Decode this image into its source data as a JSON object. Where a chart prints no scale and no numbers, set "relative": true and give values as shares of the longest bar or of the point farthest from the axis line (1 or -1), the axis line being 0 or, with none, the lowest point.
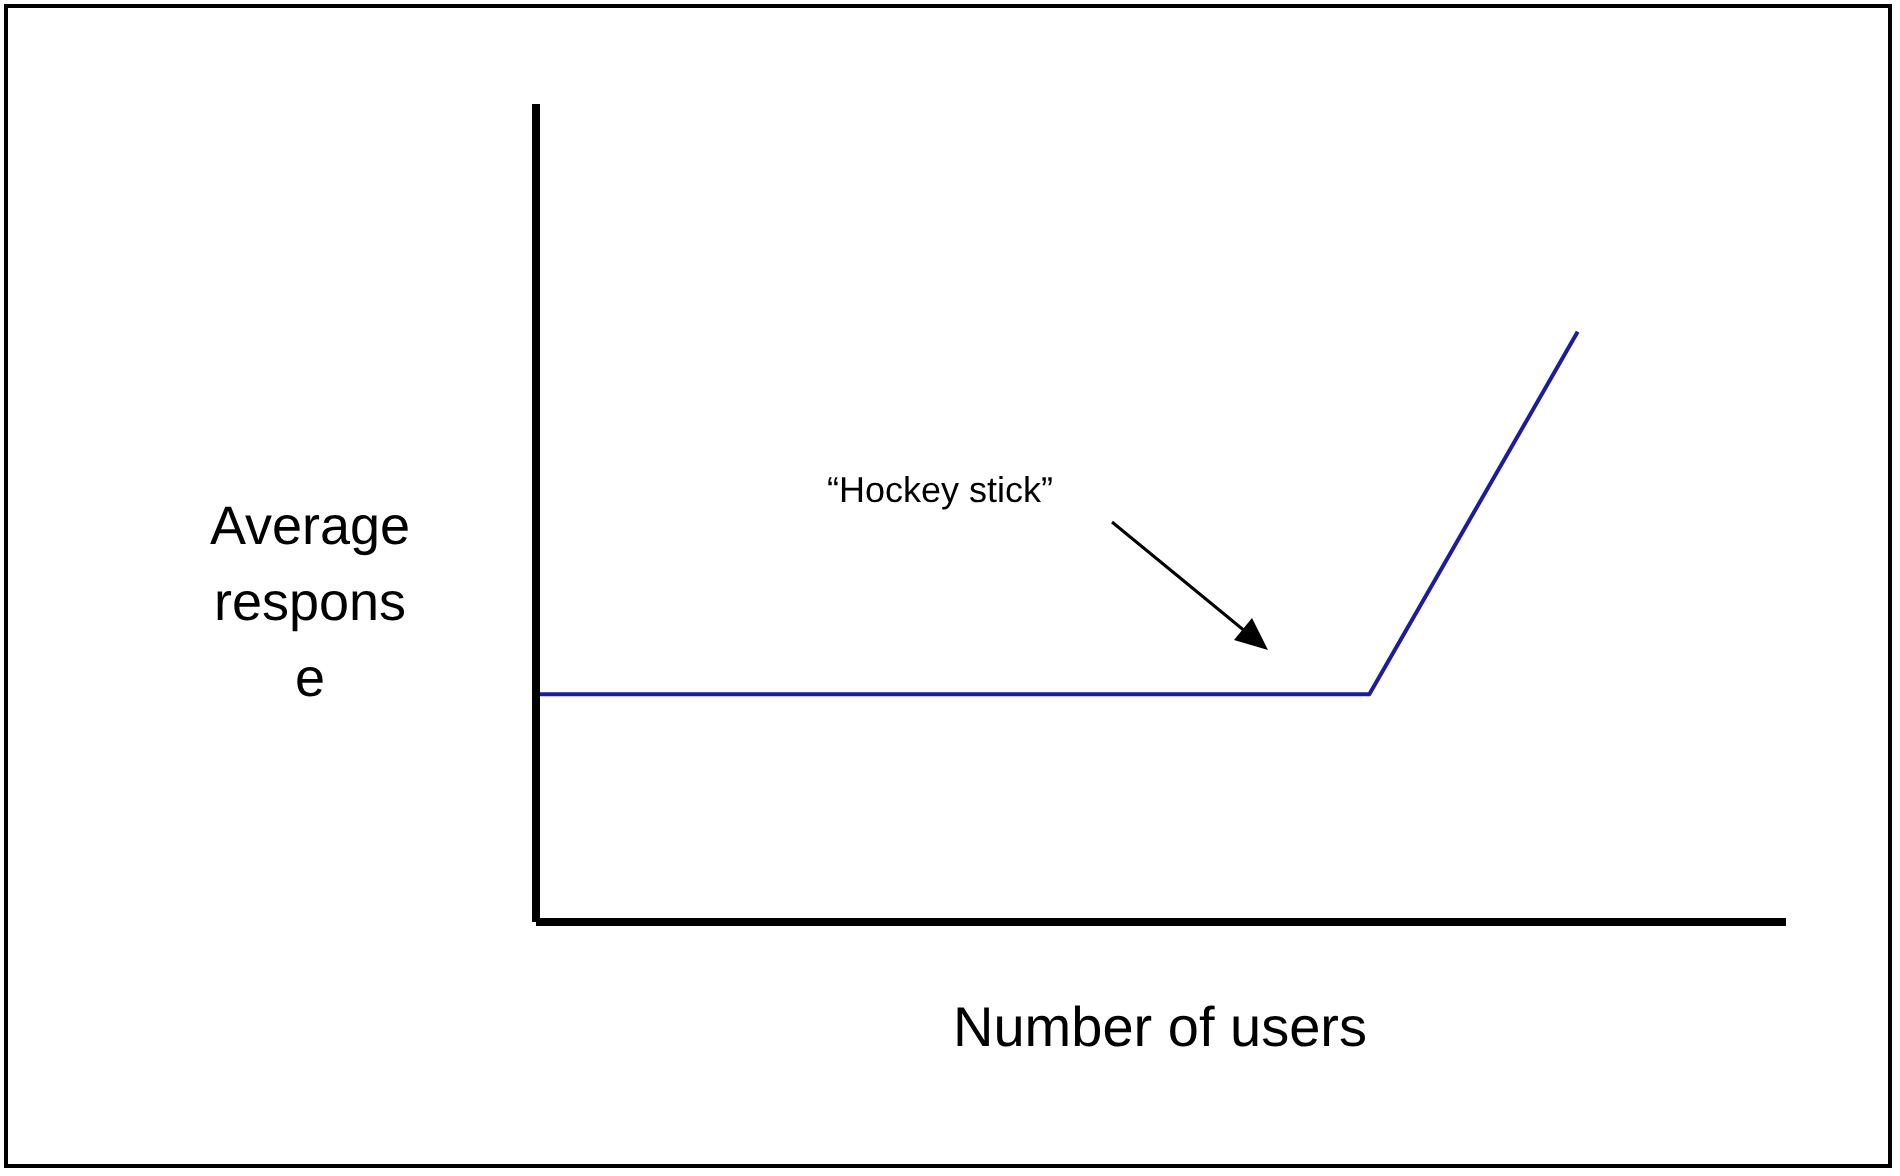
{
  "chart_data": {
    "type": "line",
    "relative": true,
    "xlabel": "Number of users",
    "ylabel": "Average response",
    "categories": [
      null,
      null,
      null,
      null,
      null,
      null,
      null
    ],
    "series": [
      {
        "color": "#1c1ca0",
        "values": [
          0.386,
          0.386,
          0.386,
          0.386,
          0.386,
          1,
          null
        ]
      }
    ],
    "annotations": [
      "“Hockey stick”"
    ],
    "marker": "none",
    "grid": false
  }
}
